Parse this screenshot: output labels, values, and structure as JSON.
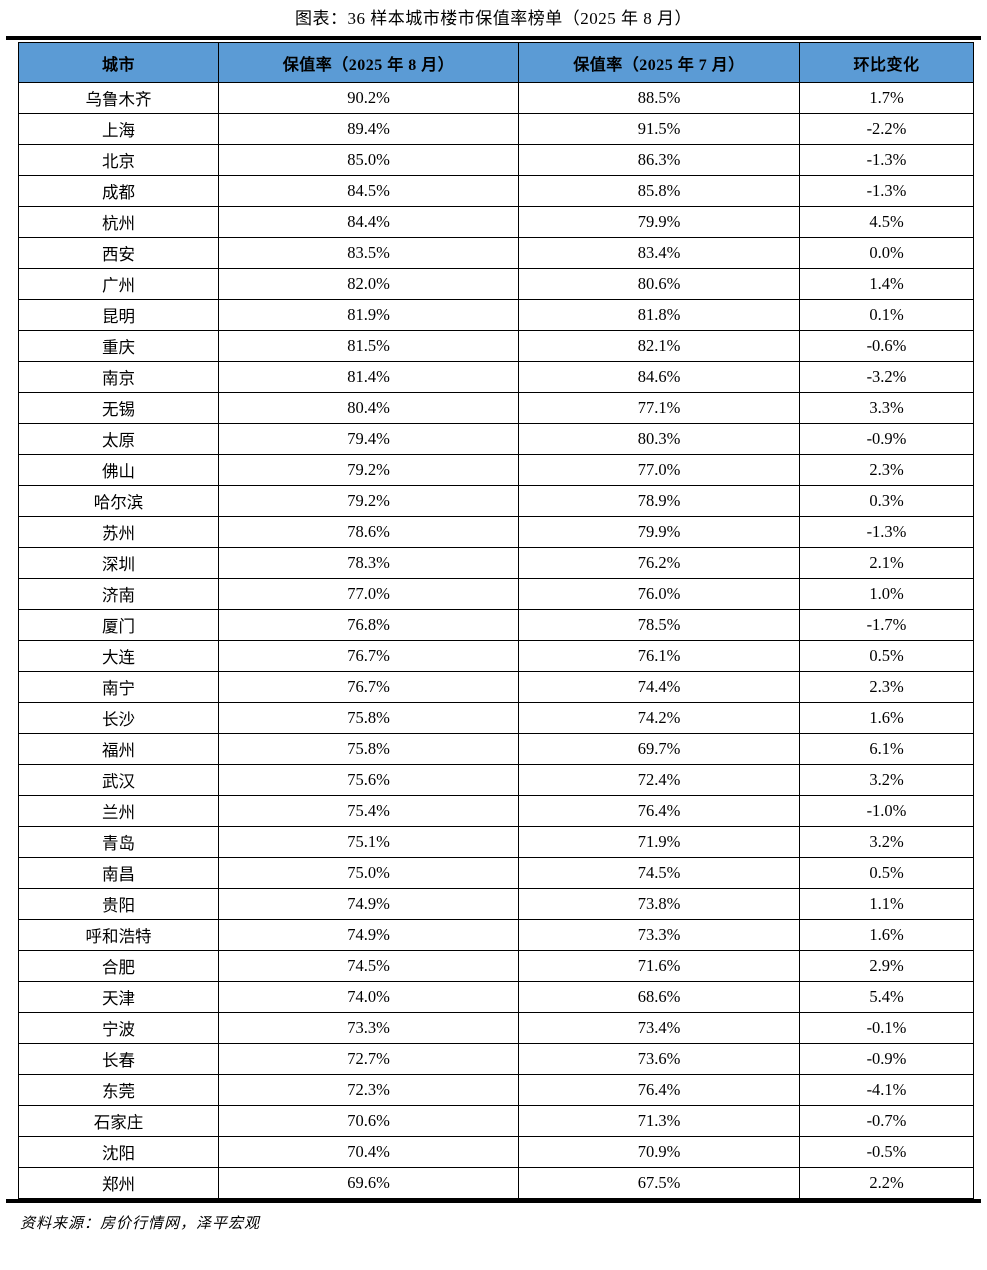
{
  "title": "图表：36 样本城市楼市保值率榜单（2025 年 8 月）",
  "source_note": "资料来源：房价行情网，泽平宏观",
  "colors": {
    "header_bg": "#5B9BD5",
    "border": "#000000",
    "rule": "#000000",
    "text": "#000000"
  },
  "chart_data": {
    "type": "table",
    "title": "图表：36 样本城市楼市保值率榜单（2025 年 8 月）",
    "columns": [
      "城市",
      "保值率（2025 年 8 月）",
      "保值率（2025 年 7 月）",
      "环比变化"
    ],
    "rows": [
      [
        "乌鲁木齐",
        "90.2%",
        "88.5%",
        "1.7%"
      ],
      [
        "上海",
        "89.4%",
        "91.5%",
        "-2.2%"
      ],
      [
        "北京",
        "85.0%",
        "86.3%",
        "-1.3%"
      ],
      [
        "成都",
        "84.5%",
        "85.8%",
        "-1.3%"
      ],
      [
        "杭州",
        "84.4%",
        "79.9%",
        "4.5%"
      ],
      [
        "西安",
        "83.5%",
        "83.4%",
        "0.0%"
      ],
      [
        "广州",
        "82.0%",
        "80.6%",
        "1.4%"
      ],
      [
        "昆明",
        "81.9%",
        "81.8%",
        "0.1%"
      ],
      [
        "重庆",
        "81.5%",
        "82.1%",
        "-0.6%"
      ],
      [
        "南京",
        "81.4%",
        "84.6%",
        "-3.2%"
      ],
      [
        "无锡",
        "80.4%",
        "77.1%",
        "3.3%"
      ],
      [
        "太原",
        "79.4%",
        "80.3%",
        "-0.9%"
      ],
      [
        "佛山",
        "79.2%",
        "77.0%",
        "2.3%"
      ],
      [
        "哈尔滨",
        "79.2%",
        "78.9%",
        "0.3%"
      ],
      [
        "苏州",
        "78.6%",
        "79.9%",
        "-1.3%"
      ],
      [
        "深圳",
        "78.3%",
        "76.2%",
        "2.1%"
      ],
      [
        "济南",
        "77.0%",
        "76.0%",
        "1.0%"
      ],
      [
        "厦门",
        "76.8%",
        "78.5%",
        "-1.7%"
      ],
      [
        "大连",
        "76.7%",
        "76.1%",
        "0.5%"
      ],
      [
        "南宁",
        "76.7%",
        "74.4%",
        "2.3%"
      ],
      [
        "长沙",
        "75.8%",
        "74.2%",
        "1.6%"
      ],
      [
        "福州",
        "75.8%",
        "69.7%",
        "6.1%"
      ],
      [
        "武汉",
        "75.6%",
        "72.4%",
        "3.2%"
      ],
      [
        "兰州",
        "75.4%",
        "76.4%",
        "-1.0%"
      ],
      [
        "青岛",
        "75.1%",
        "71.9%",
        "3.2%"
      ],
      [
        "南昌",
        "75.0%",
        "74.5%",
        "0.5%"
      ],
      [
        "贵阳",
        "74.9%",
        "73.8%",
        "1.1%"
      ],
      [
        "呼和浩特",
        "74.9%",
        "73.3%",
        "1.6%"
      ],
      [
        "合肥",
        "74.5%",
        "71.6%",
        "2.9%"
      ],
      [
        "天津",
        "74.0%",
        "68.6%",
        "5.4%"
      ],
      [
        "宁波",
        "73.3%",
        "73.4%",
        "-0.1%"
      ],
      [
        "长春",
        "72.7%",
        "73.6%",
        "-0.9%"
      ],
      [
        "东莞",
        "72.3%",
        "76.4%",
        "-4.1%"
      ],
      [
        "石家庄",
        "70.6%",
        "71.3%",
        "-0.7%"
      ],
      [
        "沈阳",
        "70.4%",
        "70.9%",
        "-0.5%"
      ],
      [
        "郑州",
        "69.6%",
        "67.5%",
        "2.2%"
      ]
    ]
  }
}
